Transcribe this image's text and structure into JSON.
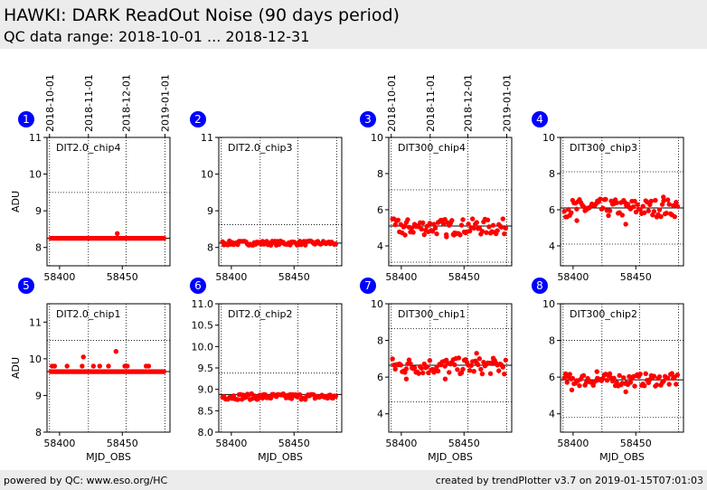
{
  "header": {
    "title": "HAWKI: DARK ReadOut Noise (90 days period)",
    "subtitle": "QC data range: 2018-10-01 ... 2018-12-31"
  },
  "footer": {
    "left": "powered by QC: www.eso.org/HC",
    "right": "created by trendPlotter v3.7 on 2019-01-15T07:01:03"
  },
  "colors": {
    "marker": "#ff0000",
    "badge": "#0000ff",
    "header_bg": "#ececec"
  },
  "date_axis": {
    "labels": [
      "2018-10-01",
      "2018-11-01",
      "2018-12-01",
      "2019-01-01"
    ],
    "mjd": [
      58392,
      58423,
      58453,
      58484
    ]
  },
  "x_axis": {
    "label": "MJD_OBS",
    "ticks": [
      58400,
      58450
    ],
    "range": [
      58390,
      58488
    ]
  },
  "y_axis_label": "ADU",
  "chart_data": [
    {
      "type": "scatter",
      "badge": "1",
      "name": "DIT2.0_chip4",
      "ylim": [
        7.5,
        11
      ],
      "yticks": [
        8,
        9,
        10,
        11
      ],
      "ref_lines": [
        8.25,
        9.5
      ],
      "mean": 8.25,
      "base": 8.25,
      "spread": 0.0,
      "outliers": [
        [
          58446,
          8.38
        ]
      ]
    },
    {
      "type": "scatter",
      "badge": "2",
      "name": "DIT2.0_chip3",
      "ylim": [
        7.5,
        11
      ],
      "yticks": [
        8,
        9,
        10,
        11
      ],
      "ref_lines": [
        8.12,
        8.62
      ],
      "mean": 8.12,
      "base": 8.12,
      "spread": 0.06,
      "outliers": []
    },
    {
      "type": "scatter",
      "badge": "3",
      "name": "DIT300_chip4",
      "ylim": [
        2.9,
        10
      ],
      "yticks": [
        4,
        6,
        8,
        10
      ],
      "ref_lines": [
        5.1,
        7.1,
        3.1
      ],
      "mean": 5.1,
      "base": 5.05,
      "spread": 0.45,
      "outliers": [
        [
          58403,
          4.6
        ],
        [
          58436,
          4.5
        ],
        [
          58442,
          4.6
        ]
      ]
    },
    {
      "type": "scatter",
      "badge": "4",
      "name": "DIT300_chip3",
      "ylim": [
        2.9,
        10
      ],
      "yticks": [
        4,
        6,
        8,
        10
      ],
      "ref_lines": [
        6.1,
        8.1,
        4.1
      ],
      "mean": 6.1,
      "base": 6.1,
      "spread": 0.5,
      "outliers": [
        [
          58403,
          5.4
        ],
        [
          58442,
          5.2
        ],
        [
          58472,
          6.7
        ]
      ]
    },
    {
      "type": "scatter",
      "badge": "5",
      "name": "DIT2.0_chip1",
      "ylim": [
        8,
        11.5
      ],
      "yticks": [
        8,
        9,
        10,
        11
      ],
      "ref_lines": [
        9.65,
        10.5
      ],
      "mean": 9.65,
      "base": 9.65,
      "spread": 0.0,
      "outliers": [
        [
          58394,
          9.8
        ],
        [
          58396,
          9.8
        ],
        [
          58406,
          9.8
        ],
        [
          58418,
          9.8
        ],
        [
          58419,
          10.05
        ],
        [
          58427,
          9.8
        ],
        [
          58432,
          9.8
        ],
        [
          58439,
          9.8
        ],
        [
          58445,
          10.2
        ],
        [
          58452,
          9.8
        ],
        [
          58454,
          9.8
        ],
        [
          58469,
          9.8
        ],
        [
          58471,
          9.8
        ]
      ]
    },
    {
      "type": "scatter",
      "badge": "6",
      "name": "DIT2.0_chip2",
      "ylim": [
        8,
        11
      ],
      "yticks": [
        8.0,
        8.5,
        9.0,
        9.5,
        10.0,
        10.5,
        11.0
      ],
      "ref_lines": [
        8.88,
        9.38
      ],
      "mean": 8.88,
      "base": 8.83,
      "spread": 0.07,
      "outliers": []
    },
    {
      "type": "scatter",
      "badge": "7",
      "name": "DIT300_chip1",
      "ylim": [
        3,
        10
      ],
      "yticks": [
        4,
        6,
        8,
        10
      ],
      "ref_lines": [
        6.65,
        8.65,
        4.65
      ],
      "mean": 6.65,
      "base": 6.6,
      "spread": 0.45,
      "outliers": [
        [
          58404,
          5.9
        ],
        [
          58435,
          5.9
        ],
        [
          58460,
          7.3
        ]
      ]
    },
    {
      "type": "scatter",
      "badge": "8",
      "name": "DIT300_chip2",
      "ylim": [
        3,
        10
      ],
      "yticks": [
        4,
        6,
        8,
        10
      ],
      "ref_lines": [
        5.85,
        8.0,
        3.8
      ],
      "mean": 5.85,
      "base": 5.85,
      "spread": 0.35,
      "outliers": [
        [
          58399,
          5.3
        ],
        [
          58442,
          5.2
        ],
        [
          58419,
          6.3
        ]
      ]
    }
  ]
}
